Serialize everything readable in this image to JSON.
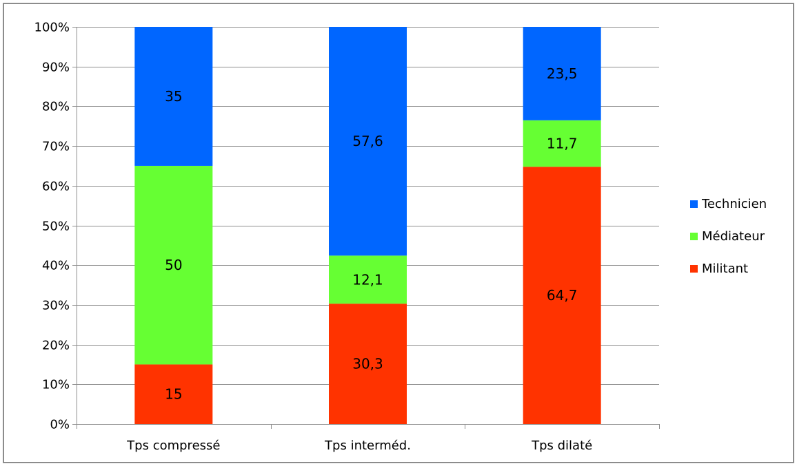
{
  "chart_data": {
    "type": "bar",
    "stacked": true,
    "percent_stacked": true,
    "title": "",
    "xlabel": "",
    "ylabel": "",
    "categories": [
      "Tps compressé",
      "Tps interméd.",
      "Tps dilaté"
    ],
    "series": [
      {
        "name": "Militant",
        "color": "#ff3300",
        "values": [
          15,
          30.3,
          64.7
        ],
        "labels": [
          "15",
          "30,3",
          "64,7"
        ]
      },
      {
        "name": "Médiateur",
        "color": "#66ff33",
        "values": [
          50,
          12.1,
          11.7
        ],
        "labels": [
          "50",
          "12,1",
          "11,7"
        ]
      },
      {
        "name": "Technicien",
        "color": "#0066ff",
        "values": [
          35,
          57.6,
          23.5
        ],
        "labels": [
          "35",
          "57,6",
          "23,5"
        ]
      }
    ],
    "ylim": [
      0,
      100
    ],
    "y_ticks": [
      0,
      10,
      20,
      30,
      40,
      50,
      60,
      70,
      80,
      90,
      100
    ],
    "y_tick_labels": [
      "0%",
      "10%",
      "20%",
      "30%",
      "40%",
      "50%",
      "60%",
      "70%",
      "80%",
      "90%",
      "100%"
    ],
    "grid": true,
    "legend": {
      "position": "right",
      "order": [
        "Technicien",
        "Médiateur",
        "Militant"
      ]
    }
  }
}
